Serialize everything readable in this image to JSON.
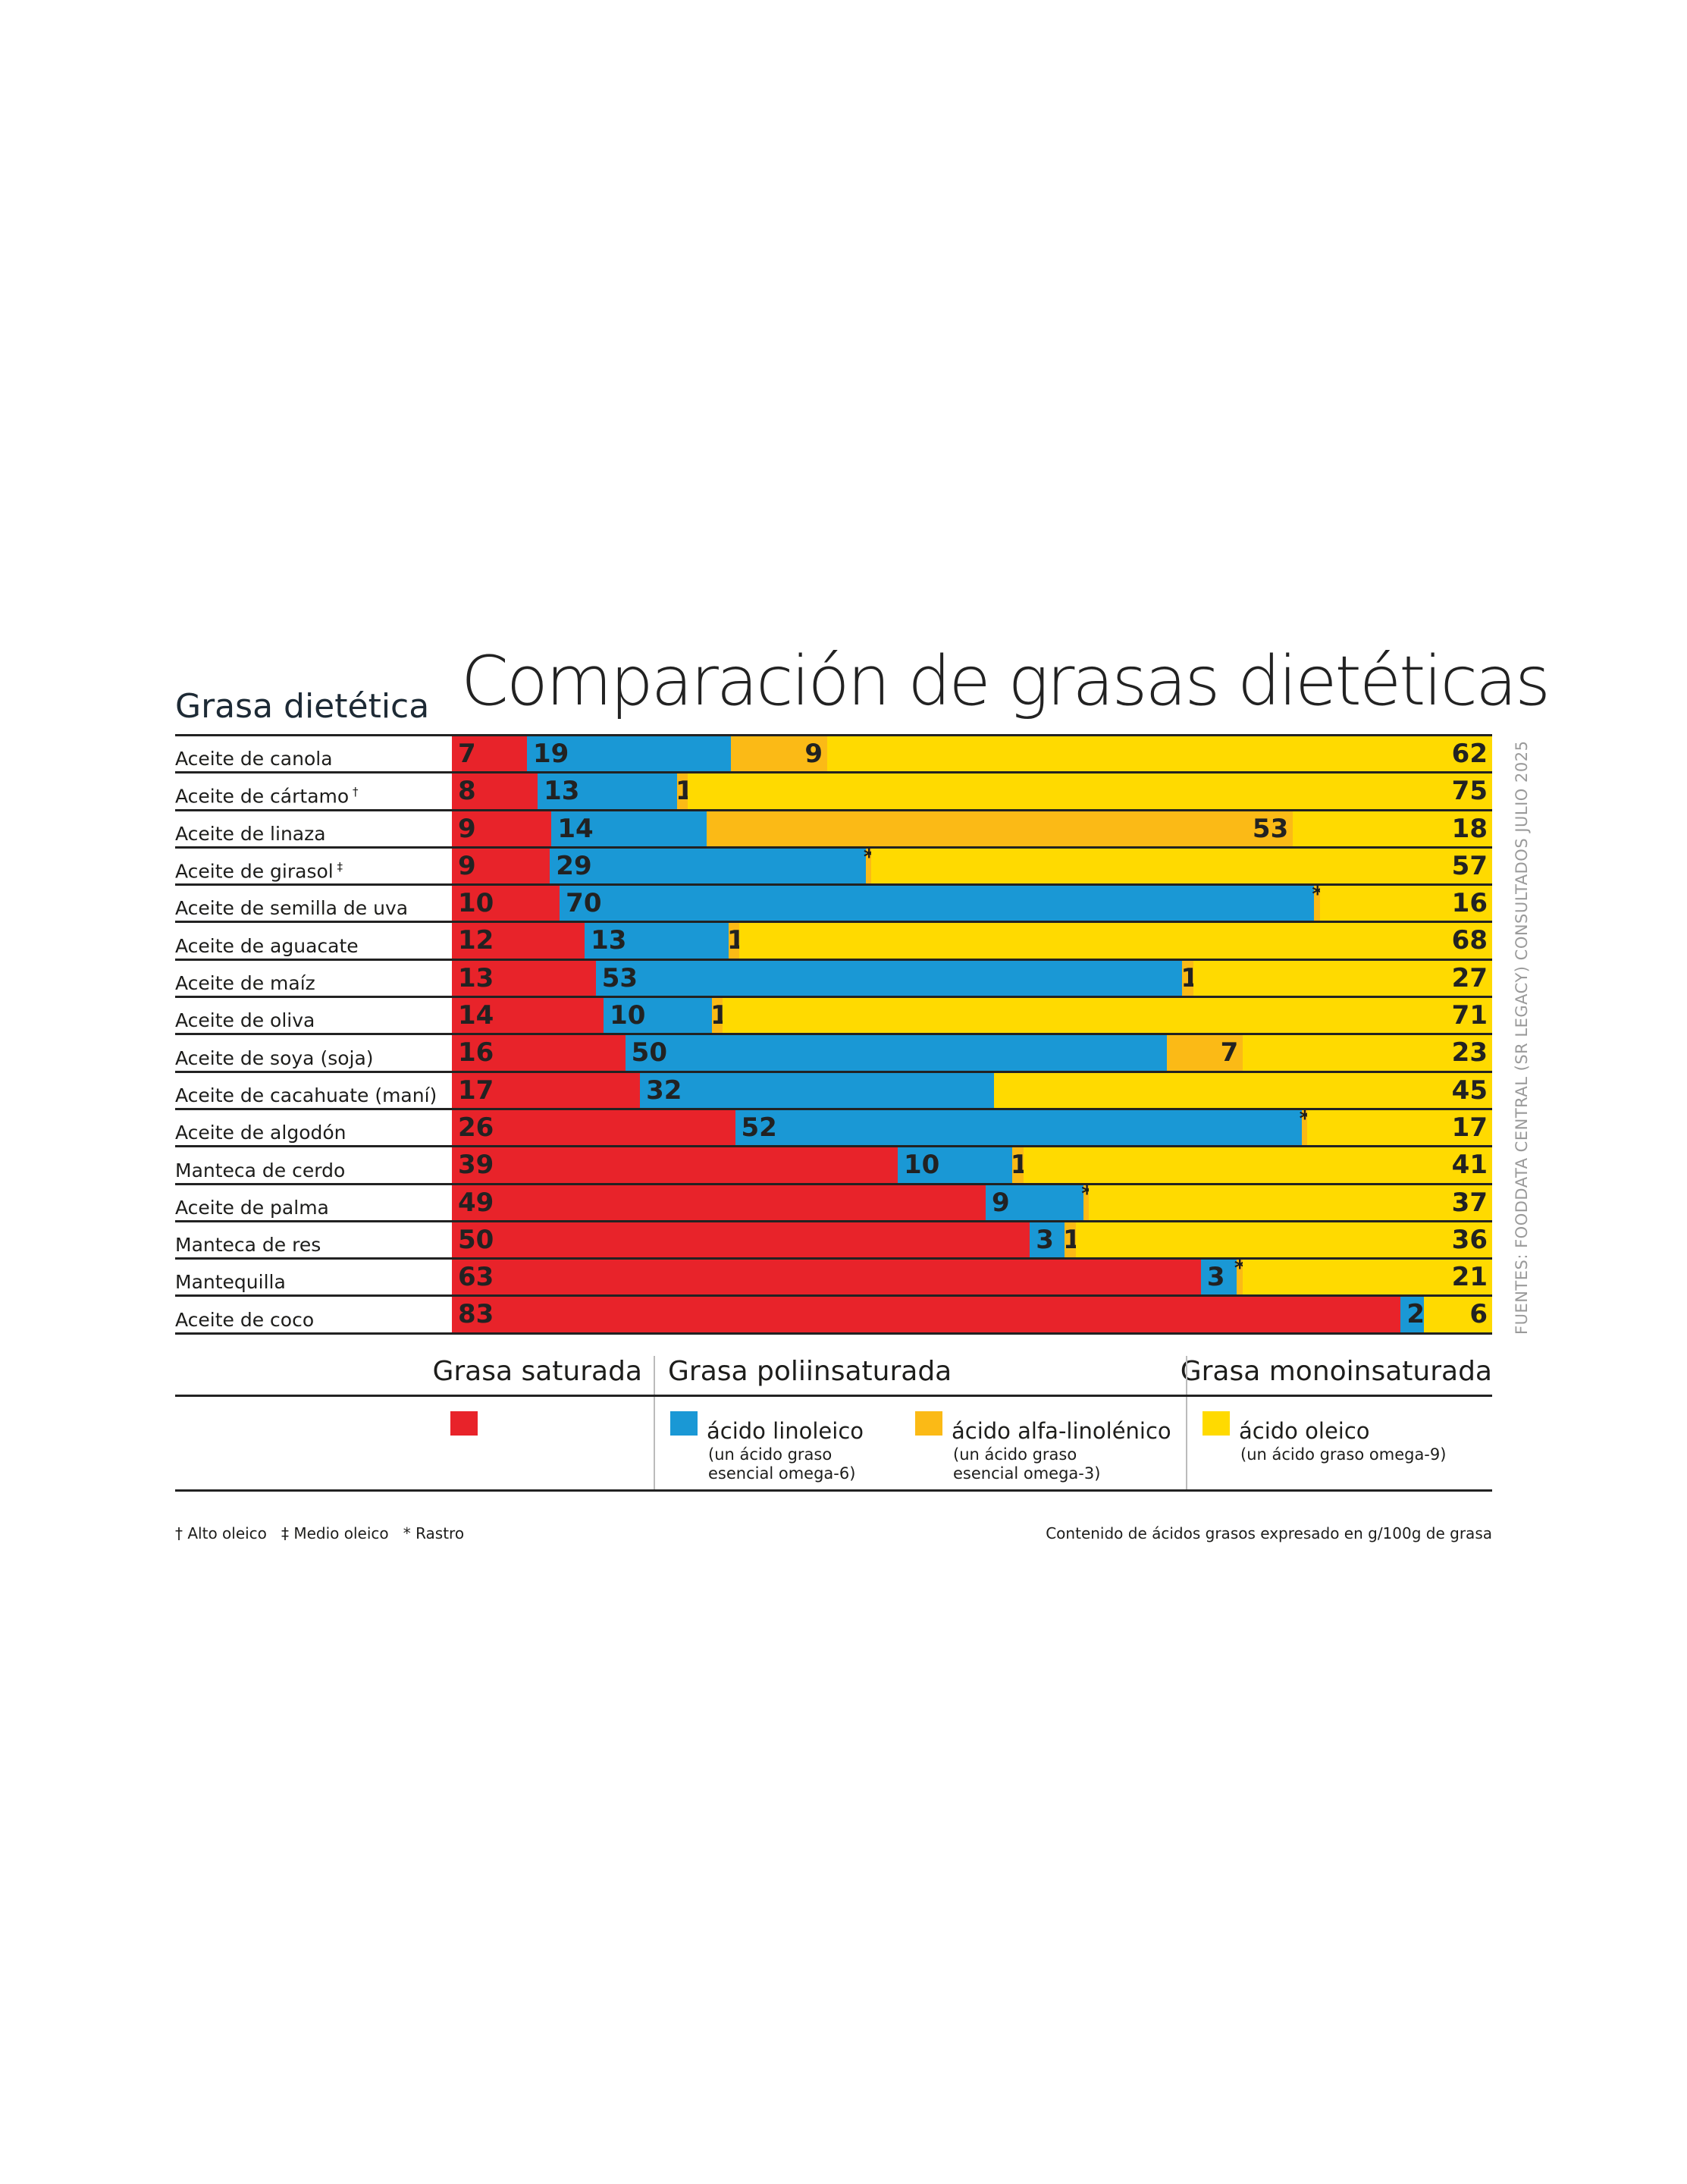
{
  "chart_data": {
    "type": "bar",
    "orientation": "horizontal",
    "stacked": true,
    "title": "Comparación de grasas dietéticas",
    "row_header": "Grasa dietética",
    "unit_note": "Contenido de ácidos grasos expresado en g/100g de grasa",
    "source": "FUENTES: FOODDATA CENTRAL (SR LEGACY) CONSULTADOS JULIO 2025",
    "series": [
      {
        "key": "sat",
        "name": "Grasa saturada",
        "color": "#E8232A"
      },
      {
        "key": "lin",
        "name": "ácido linoleico",
        "color": "#1A98D5"
      },
      {
        "key": "ala",
        "name": "ácido alfa-linolénico",
        "color": "#FBBA16"
      },
      {
        "key": "ole",
        "name": "ácido oleico",
        "color": "#FFDA00"
      }
    ],
    "rows": [
      {
        "label": "Aceite de canola",
        "mark": "",
        "sat": 7,
        "lin": 19,
        "ala": 9,
        "ole": 62
      },
      {
        "label": "Aceite de cártamo",
        "mark": "†",
        "sat": 8,
        "lin": 13,
        "ala": 1,
        "ole": 75
      },
      {
        "label": "Aceite de linaza",
        "mark": "",
        "sat": 9,
        "lin": 14,
        "ala": 53,
        "ole": 18
      },
      {
        "label": "Aceite de girasol",
        "mark": "‡",
        "sat": 9,
        "lin": 29,
        "ala": "*",
        "ole": 57
      },
      {
        "label": "Aceite de semilla de uva",
        "mark": "",
        "sat": 10,
        "lin": 70,
        "ala": "*",
        "ole": 16
      },
      {
        "label": "Aceite de aguacate",
        "mark": "",
        "sat": 12,
        "lin": 13,
        "ala": 1,
        "ole": 68
      },
      {
        "label": "Aceite de maíz",
        "mark": "",
        "sat": 13,
        "lin": 53,
        "ala": 1,
        "ole": 27
      },
      {
        "label": "Aceite de oliva",
        "mark": "",
        "sat": 14,
        "lin": 10,
        "ala": 1,
        "ole": 71
      },
      {
        "label": "Aceite de soya (soja)",
        "mark": "",
        "sat": 16,
        "lin": 50,
        "ala": 7,
        "ole": 23
      },
      {
        "label": "Aceite de cacahuate (maní)",
        "mark": "",
        "sat": 17,
        "lin": 32,
        "ala": null,
        "ole": 45
      },
      {
        "label": "Aceite de algodón",
        "mark": "",
        "sat": 26,
        "lin": 52,
        "ala": "*",
        "ole": 17
      },
      {
        "label": "Manteca de cerdo",
        "mark": "",
        "sat": 39,
        "lin": 10,
        "ala": 1,
        "ole": 41
      },
      {
        "label": "Aceite de palma",
        "mark": "",
        "sat": 49,
        "lin": 9,
        "ala": "*",
        "ole": 37
      },
      {
        "label": "Manteca de res",
        "mark": "",
        "sat": 50,
        "lin": 3,
        "ala": 1,
        "ole": 36
      },
      {
        "label": "Mantequilla",
        "mark": "",
        "sat": 63,
        "lin": 3,
        "ala": "*",
        "ole": 21
      },
      {
        "label": "Aceite de coco",
        "mark": "",
        "sat": 83,
        "lin": 2,
        "ala": null,
        "ole": 6
      }
    ]
  },
  "legend": {
    "sat_header": "Grasa saturada",
    "poly_header": "Grasa poliinsaturada",
    "mono_header": "Grasa monoinsaturada",
    "lin_label": "ácido linoleico",
    "lin_sub1": "(un ácido graso",
    "lin_sub2": "esencial omega-6)",
    "ala_label": "ácido alfa-linolénico",
    "ala_sub1": "(un ácido graso",
    "ala_sub2": "esencial omega-3)",
    "ole_label": "ácido oleico",
    "ole_sub1": "(un ácido graso omega-9)"
  },
  "footnotes": {
    "marks": "† Alto oleico   ‡ Medio oleico   * Rastro"
  }
}
